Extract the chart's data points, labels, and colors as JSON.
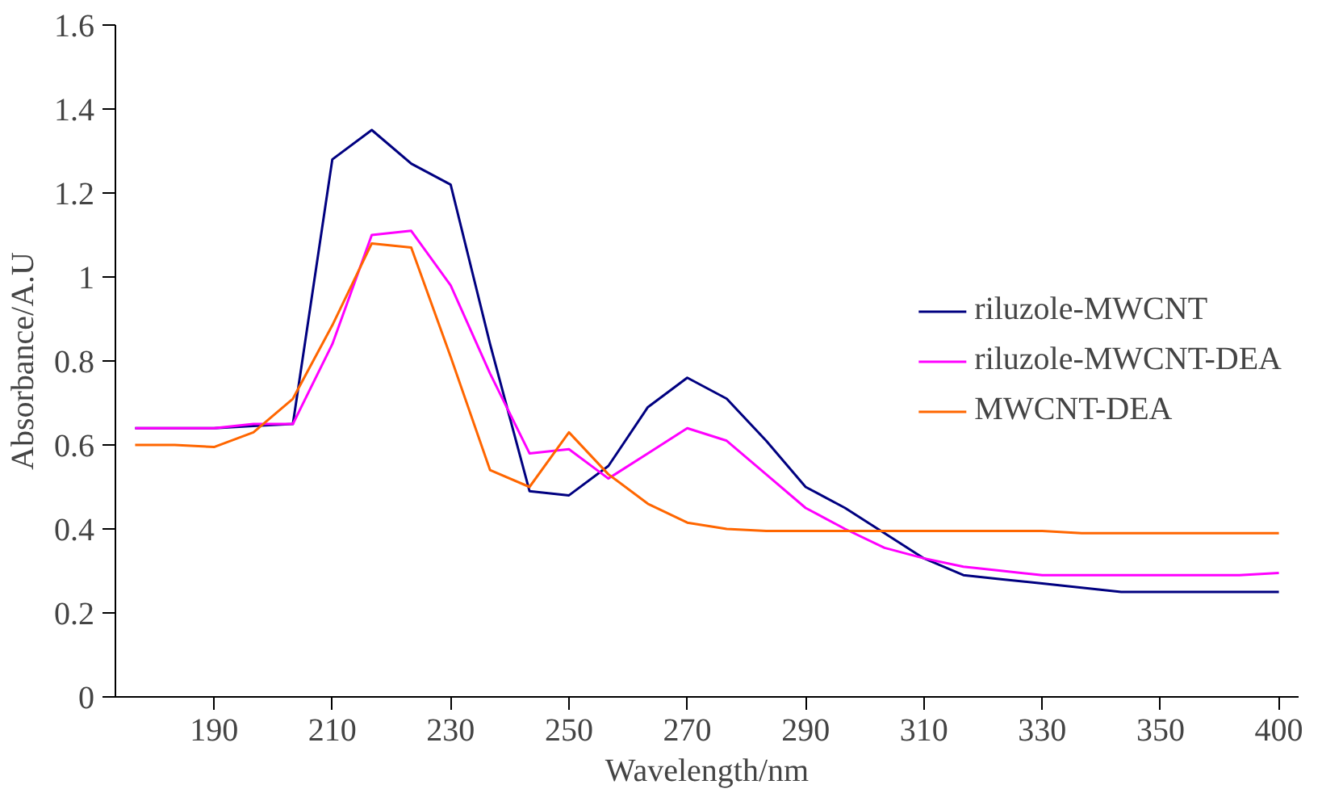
{
  "chart_data": {
    "type": "line",
    "xlabel": "Wavelength/nm",
    "ylabel": "Absorbance/A.U",
    "categories": [
      null,
      null,
      "190",
      null,
      null,
      "210",
      null,
      null,
      "230",
      null,
      null,
      "250",
      null,
      null,
      "270",
      null,
      null,
      "290",
      null,
      null,
      "310",
      null,
      null,
      "330",
      null,
      null,
      "350",
      null,
      null,
      "400"
    ],
    "ylim": [
      0,
      1.6
    ],
    "yticks": [
      0,
      0.2,
      0.4,
      0.6,
      0.8,
      1,
      1.2,
      1.4,
      1.6
    ],
    "grid": false,
    "legend": "right",
    "marker": "none",
    "line_style": "solid",
    "series": [
      {
        "name": "riluzole-MWCNT",
        "color": "#000080",
        "values": [
          0.64,
          0.64,
          0.64,
          0.645,
          0.65,
          1.28,
          1.35,
          1.27,
          1.22,
          0.84,
          0.49,
          0.48,
          0.55,
          0.69,
          0.76,
          0.71,
          0.61,
          0.5,
          0.45,
          0.39,
          0.33,
          0.29,
          0.28,
          0.27,
          0.26,
          0.25,
          0.25,
          0.25,
          0.25,
          0.25
        ]
      },
      {
        "name": "riluzole-MWCNT-DEA",
        "color": "#ff00ff",
        "values": [
          0.64,
          0.64,
          0.64,
          0.65,
          0.65,
          0.84,
          1.1,
          1.11,
          0.98,
          0.77,
          0.58,
          0.59,
          0.52,
          0.58,
          0.64,
          0.61,
          0.53,
          0.45,
          0.4,
          0.355,
          0.33,
          0.31,
          0.3,
          0.29,
          0.29,
          0.29,
          0.29,
          0.29,
          0.29,
          0.295
        ]
      },
      {
        "name": "MWCNT-DEA",
        "color": "#ff6600",
        "values": [
          0.6,
          0.6,
          0.595,
          0.63,
          0.71,
          0.885,
          1.08,
          1.07,
          0.81,
          0.54,
          0.5,
          0.63,
          0.53,
          0.46,
          0.415,
          0.4,
          0.395,
          0.395,
          0.395,
          0.395,
          0.395,
          0.395,
          0.395,
          0.395,
          0.39,
          0.39,
          0.39,
          0.39,
          0.39,
          0.39
        ]
      }
    ]
  }
}
